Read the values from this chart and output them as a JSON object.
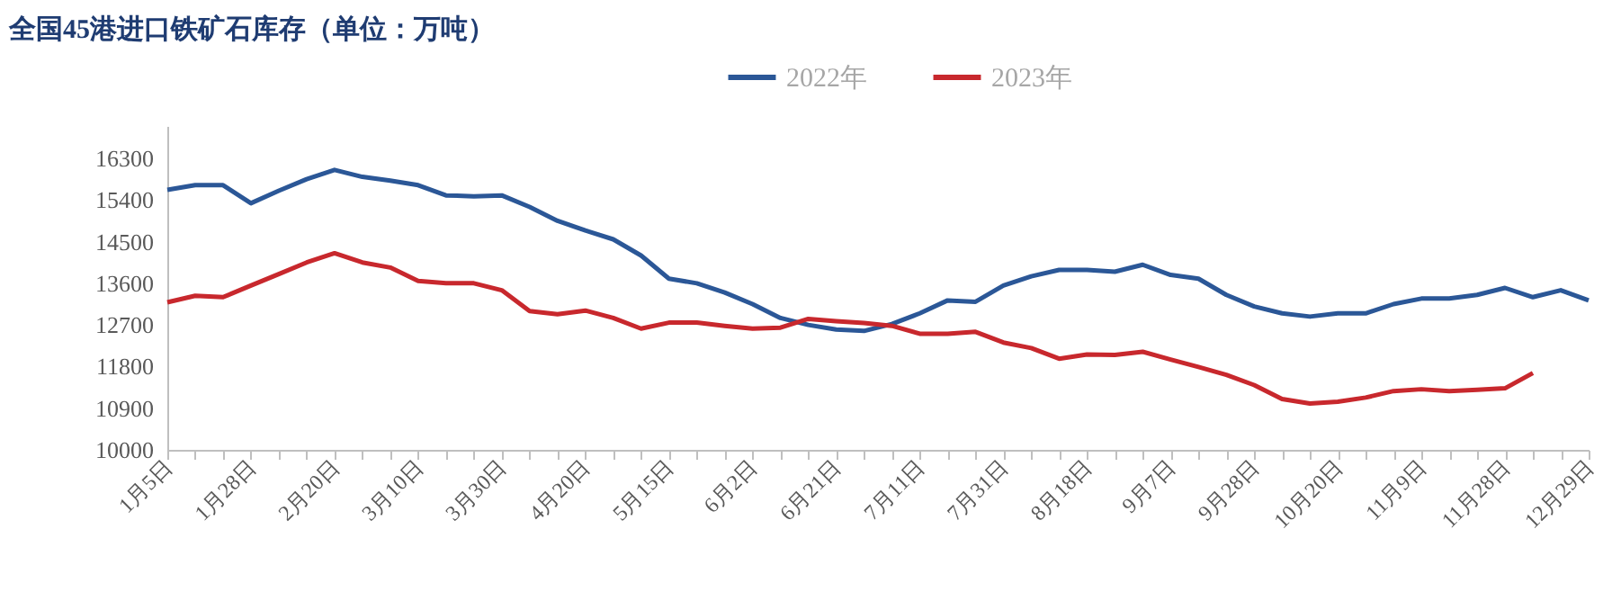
{
  "chart_data": {
    "type": "line",
    "title": "全国45港进口铁矿石库存（单位：万吨）",
    "categories": [
      "1月5日",
      null,
      null,
      "1月28日",
      null,
      null,
      "2月20日",
      null,
      null,
      "3月10日",
      null,
      null,
      "3月30日",
      null,
      null,
      "4月20日",
      null,
      null,
      "5月15日",
      null,
      null,
      "6月2日",
      null,
      null,
      "6月21日",
      null,
      null,
      "7月11日",
      null,
      null,
      "7月31日",
      null,
      null,
      "8月18日",
      null,
      null,
      "9月7日",
      null,
      null,
      "9月28日",
      null,
      null,
      "10月20日",
      null,
      null,
      "11月9日",
      null,
      null,
      "11月28日",
      null,
      null,
      "12月29日"
    ],
    "series": [
      {
        "name": "2022年",
        "color": "#2b5797",
        "values": [
          15620,
          15720,
          15720,
          15330,
          15600,
          15850,
          16050,
          15900,
          15820,
          15720,
          15500,
          15480,
          15500,
          15250,
          14950,
          14740,
          14550,
          14200,
          13700,
          13600,
          13400,
          13150,
          12850,
          12700,
          12600,
          12570,
          12720,
          12950,
          13230,
          13200,
          13550,
          13750,
          13890,
          13890,
          13850,
          14000,
          13780,
          13700,
          13350,
          13100,
          12950,
          12880,
          12950,
          12950,
          13150,
          13270,
          13270,
          13350,
          13500,
          13300,
          13450,
          13230
        ]
      },
      {
        "name": "2023年",
        "color": "#c8282d",
        "values": [
          13190,
          13330,
          13300,
          13550,
          13800,
          14050,
          14250,
          14050,
          13940,
          13650,
          13600,
          13600,
          13450,
          13000,
          12930,
          13010,
          12850,
          12620,
          12750,
          12750,
          12680,
          12620,
          12640,
          12830,
          12780,
          12740,
          12680,
          12510,
          12510,
          12550,
          12320,
          12200,
          11970,
          12060,
          12050,
          12120,
          11950,
          11790,
          11620,
          11400,
          11100,
          11000,
          11040,
          11130,
          11270,
          11310,
          11270,
          11300,
          11330,
          11660,
          null,
          null
        ]
      }
    ],
    "ylim": [
      10000,
      17000
    ],
    "yticks": [
      10000,
      10900,
      11800,
      12700,
      13600,
      14500,
      15400,
      16300
    ],
    "grid": false,
    "legend": "top"
  }
}
